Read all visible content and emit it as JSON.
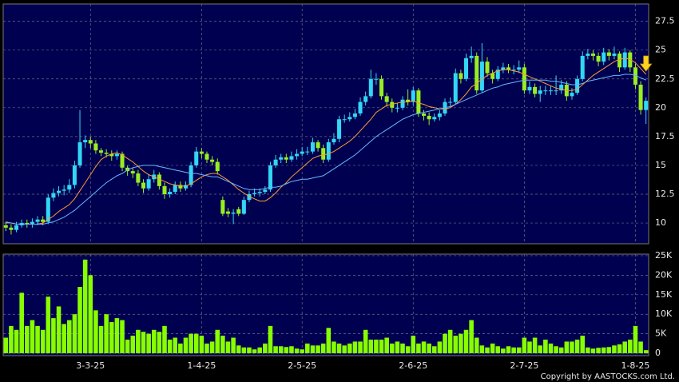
{
  "chart_data": [
    {
      "type": "candlestick",
      "up_color": "#33d6f5",
      "down_color": "#99ee22",
      "grid": true,
      "ylim": [
        8.2,
        29
      ],
      "yticks": [
        10,
        12.5,
        15,
        17.5,
        20,
        22.5,
        25,
        27.5
      ],
      "open": [
        9.8,
        9.6,
        9.4,
        9.8,
        10,
        9.9,
        10.1,
        10.3,
        10.1,
        12.2,
        12.6,
        12.8,
        12.9,
        13.3,
        15,
        17,
        17.2,
        16.9,
        16.3,
        16.1,
        16,
        15.8,
        16,
        14.8,
        14.5,
        14.3,
        13.5,
        13,
        13.8,
        14.2,
        13.2,
        12.5,
        12.7,
        13.3,
        13,
        13.3,
        15,
        16.2,
        16,
        15.5,
        15.3,
        12,
        11,
        10.8,
        11.2,
        10.8,
        12,
        12.5,
        12.6,
        12.7,
        12.9,
        15,
        15.5,
        15.7,
        15.5,
        15.8,
        16,
        16.2,
        16.2,
        17,
        16.5,
        15.5,
        17,
        17.3,
        19,
        19,
        19.2,
        19.5,
        20.5,
        21,
        22.5,
        22.5,
        21,
        20.5,
        20,
        20,
        20.7,
        20.5,
        21.5,
        19.5,
        19.3,
        19,
        19.2,
        19.5,
        20.5,
        20.5,
        23,
        22.5,
        24.3,
        24.5,
        21.5,
        24,
        23,
        22.5,
        23.3,
        23.5,
        23.3,
        23.3,
        23.5,
        21.5,
        21.8,
        21.2,
        21.5,
        21.5,
        21.5,
        21.5,
        22,
        21,
        21.3,
        22.5,
        24.5,
        24.7,
        24.5,
        24,
        24.8,
        24.5,
        24.7,
        23.5,
        24.8,
        23.5,
        22,
        19.8
      ],
      "high": [
        10.1,
        9.9,
        10.1,
        10.3,
        10.3,
        10.4,
        10.6,
        10.6,
        12.5,
        13,
        13.2,
        13.3,
        13.8,
        15.4,
        19.8,
        17.6,
        17.5,
        17.2,
        16.5,
        16.4,
        16.3,
        16.3,
        16.2,
        15,
        14.8,
        14.6,
        13.8,
        14.2,
        14.6,
        14.4,
        13.5,
        13,
        13.6,
        13.6,
        13.6,
        15.3,
        16.6,
        16.5,
        16.2,
        15.8,
        15.6,
        12.3,
        11.3,
        11.2,
        11.4,
        12.3,
        12.8,
        13,
        13,
        13.2,
        15.3,
        15.9,
        16,
        16,
        16.2,
        16.4,
        16.6,
        16.6,
        17.4,
        17.2,
        16.8,
        17.3,
        17.8,
        19.3,
        19.4,
        19.6,
        19.9,
        20.9,
        21.4,
        23.3,
        23,
        22.8,
        21.3,
        20.8,
        20.4,
        21,
        21.6,
        21.8,
        21.7,
        19.8,
        19.6,
        19.5,
        19.8,
        20.8,
        20.9,
        23.4,
        23.3,
        24.7,
        25.3,
        24.8,
        25.6,
        24.4,
        23.3,
        23.6,
        23.9,
        23.8,
        23.7,
        24.1,
        23.8,
        22.3,
        22.1,
        21.9,
        21.9,
        21.9,
        22.8,
        22.4,
        22.3,
        21.7,
        22.8,
        24.9,
        25.1,
        25,
        24.8,
        25.2,
        25.1,
        25.3,
        24.9,
        25.2,
        25,
        23.8,
        22.3,
        20.9
      ],
      "low": [
        9.3,
        9,
        9.2,
        9.6,
        9.6,
        9.6,
        9.8,
        9.8,
        9.9,
        11.9,
        12.3,
        12.4,
        12.6,
        13,
        14.8,
        16.5,
        16.5,
        16,
        15.8,
        15.7,
        15.4,
        15.5,
        14.5,
        14.1,
        13.9,
        13.2,
        12.6,
        12.8,
        13.5,
        12.9,
        12.1,
        12.2,
        12.5,
        12.7,
        12.8,
        13.1,
        14.8,
        15.6,
        15.2,
        15,
        14.2,
        10.6,
        10.5,
        9.9,
        10.6,
        10.7,
        11.8,
        12.3,
        12.3,
        12.5,
        12.7,
        14.8,
        15.2,
        15.2,
        15.3,
        15.5,
        15.8,
        15.9,
        16,
        16.2,
        15.2,
        15.3,
        16.8,
        17,
        18.7,
        18.8,
        19,
        19.3,
        20.2,
        20.8,
        22,
        20.7,
        20.1,
        19.6,
        19.6,
        19.8,
        20.2,
        20.2,
        19.2,
        18.9,
        18.5,
        18.8,
        18.9,
        19.3,
        20.1,
        20.3,
        22.1,
        22.3,
        23.9,
        21.2,
        21.3,
        22.7,
        22.1,
        22.3,
        23,
        23,
        22.9,
        23,
        21.2,
        21.2,
        20.9,
        20.5,
        21.1,
        21.1,
        21.1,
        21.2,
        20.6,
        20.7,
        21.1,
        22.3,
        24.2,
        24.1,
        23.6,
        23.7,
        24.1,
        24.2,
        23.1,
        23.3,
        23.1,
        21.6,
        19.4,
        18.6
      ],
      "close": [
        9.6,
        9.4,
        9.8,
        10,
        9.9,
        10.1,
        10.3,
        10.1,
        12.2,
        12.6,
        12.8,
        12.9,
        13.3,
        15,
        17,
        17.2,
        16.9,
        16.3,
        16.1,
        16,
        15.8,
        16,
        14.8,
        14.5,
        14.3,
        13.5,
        13,
        13.8,
        14.2,
        13.2,
        12.5,
        12.7,
        13.3,
        13,
        13.3,
        15,
        16.2,
        16,
        15.5,
        15.3,
        14.5,
        10.8,
        10.8,
        10.9,
        10.8,
        12,
        12.5,
        12.6,
        12.7,
        12.9,
        15,
        15.5,
        15.7,
        15.5,
        15.8,
        16,
        16.2,
        16.2,
        17,
        16.5,
        15.5,
        17,
        17.3,
        19,
        19,
        19.2,
        19.5,
        20.5,
        21,
        22.5,
        22.5,
        21,
        20.5,
        20,
        20,
        20.7,
        20.5,
        21.5,
        19.5,
        19.3,
        19,
        19.2,
        19.5,
        20.5,
        20.5,
        23,
        22.5,
        24.3,
        24.5,
        21.5,
        24,
        23,
        22.5,
        23.3,
        23.5,
        23.3,
        23.3,
        23.5,
        21.5,
        21.8,
        21.2,
        21.5,
        21.5,
        21.5,
        21.5,
        22,
        21,
        21.3,
        22.5,
        24.5,
        24.7,
        24.5,
        24,
        24.8,
        24.5,
        24.7,
        23.5,
        24.8,
        23.5,
        22,
        19.8,
        20.6
      ],
      "lines": [
        {
          "color": "#ff9933",
          "values": [
            10.1,
            10,
            9.9,
            9.9,
            9.9,
            9.9,
            9.9,
            10,
            10.3,
            10.6,
            11,
            11.3,
            11.6,
            12.1,
            12.8,
            13.5,
            14.2,
            14.9,
            15.5,
            15.8,
            16,
            16.1,
            15.9,
            15.6,
            15.3,
            14.9,
            14.5,
            14.2,
            14,
            13.8,
            13.6,
            13.4,
            13.3,
            13.2,
            13.2,
            13.4,
            13.7,
            14,
            14.2,
            14.3,
            14.3,
            14,
            13.7,
            13.3,
            12.9,
            12.6,
            12.3,
            12.1,
            11.9,
            11.9,
            12.2,
            12.6,
            13.1,
            13.5,
            14,
            14.4,
            14.8,
            15.2,
            15.6,
            15.8,
            15.9,
            16,
            16.2,
            16.5,
            16.8,
            17.1,
            17.5,
            18,
            18.5,
            19,
            19.6,
            19.9,
            20.2,
            20.3,
            20.4,
            20.5,
            20.5,
            20.6,
            20.4,
            20.3,
            20.1,
            20,
            19.9,
            19.9,
            20,
            20.3,
            20.7,
            21.2,
            21.8,
            22.1,
            22.5,
            22.8,
            23,
            23.2,
            23.3,
            23.3,
            23.2,
            23.1,
            22.9,
            22.7,
            22.5,
            22.3,
            22.1,
            21.9,
            21.7,
            21.6,
            21.5,
            21.5,
            21.6,
            22,
            22.4,
            22.8,
            23.1,
            23.4,
            23.7,
            24,
            24.2,
            24.3,
            24.2,
            23.9,
            23.4,
            22.9
          ]
        },
        {
          "color": "#66b8ff",
          "values": [
            10,
            10,
            9.9,
            9.9,
            9.9,
            9.9,
            9.9,
            9.9,
            10,
            10.1,
            10.3,
            10.5,
            10.8,
            11.1,
            11.5,
            11.9,
            12.3,
            12.7,
            13.1,
            13.5,
            13.8,
            14.1,
            14.3,
            14.6,
            14.8,
            14.9,
            15,
            15,
            15,
            14.9,
            14.8,
            14.7,
            14.6,
            14.5,
            14.4,
            14.3,
            14.3,
            14.2,
            14.1,
            14,
            14,
            13.8,
            13.6,
            13.4,
            13.2,
            13,
            12.9,
            12.9,
            12.9,
            13,
            13.1,
            13.1,
            13.2,
            13.4,
            13.6,
            13.7,
            13.8,
            13.8,
            13.9,
            14,
            14.1,
            14.4,
            14.7,
            15,
            15.3,
            15.6,
            15.9,
            16.3,
            16.7,
            17.1,
            17.5,
            17.8,
            18.1,
            18.4,
            18.7,
            19,
            19.2,
            19.4,
            19.5,
            19.6,
            19.7,
            19.8,
            19.9,
            20,
            20.1,
            20.3,
            20.5,
            20.7,
            20.9,
            21.1,
            21.3,
            21.5,
            21.7,
            21.8,
            22,
            22.1,
            22.2,
            22.3,
            22.4,
            22.4,
            22.4,
            22.4,
            22.4,
            22.3,
            22.3,
            22.2,
            22.1,
            22,
            22,
            22.1,
            22.3,
            22.4,
            22.5,
            22.6,
            22.7,
            22.8,
            22.8,
            22.9,
            22.9,
            22.8,
            22.6,
            22.4
          ]
        }
      ]
    },
    {
      "type": "bar",
      "color": "#88ff00",
      "grid": true,
      "ylim": [
        -600,
        25400
      ],
      "yticks": [
        0,
        {
          "value": 5000,
          "label": "5K"
        },
        {
          "value": 10000,
          "label": "10K"
        },
        {
          "value": 15000,
          "label": "15K"
        },
        {
          "value": 20000,
          "label": "20K"
        },
        {
          "value": 25000,
          "label": "25K"
        }
      ],
      "categories": [
        null,
        null,
        null,
        null,
        null,
        null,
        null,
        null,
        null,
        null,
        null,
        null,
        null,
        null,
        null,
        null,
        "3-3-25",
        null,
        null,
        null,
        null,
        null,
        null,
        null,
        null,
        null,
        null,
        null,
        null,
        null,
        null,
        null,
        null,
        null,
        null,
        null,
        null,
        "1-4-25",
        null,
        null,
        null,
        null,
        null,
        null,
        null,
        null,
        null,
        null,
        null,
        null,
        null,
        null,
        null,
        null,
        null,
        null,
        "2-5-25",
        null,
        null,
        null,
        null,
        null,
        null,
        null,
        null,
        null,
        null,
        null,
        null,
        null,
        null,
        null,
        null,
        null,
        null,
        null,
        null,
        "2-6-25",
        null,
        null,
        null,
        null,
        null,
        null,
        null,
        null,
        null,
        null,
        null,
        null,
        null,
        null,
        null,
        null,
        null,
        null,
        null,
        null,
        "2-7-25",
        null,
        null,
        null,
        null,
        null,
        null,
        null,
        null,
        null,
        null,
        null,
        null,
        null,
        null,
        null,
        null,
        null,
        null,
        null,
        null,
        "1-8-25",
        null,
        null
      ],
      "values": [
        4000,
        7000,
        6000,
        15500,
        7000,
        8500,
        7000,
        6000,
        14500,
        9000,
        12000,
        7500,
        8500,
        10000,
        17000,
        24000,
        20000,
        11000,
        7000,
        10000,
        8000,
        9000,
        8500,
        3500,
        4500,
        6000,
        5500,
        5000,
        6000,
        5500,
        7000,
        3500,
        4000,
        2500,
        4000,
        5000,
        5000,
        4500,
        2500,
        3000,
        6000,
        4500,
        3000,
        4000,
        2000,
        1500,
        1500,
        1000,
        1500,
        2500,
        7000,
        1800,
        1800,
        1600,
        1800,
        1200,
        1000,
        2500,
        2000,
        2000,
        2500,
        6500,
        3000,
        2500,
        2000,
        2500,
        3000,
        3000,
        6000,
        3500,
        3500,
        3500,
        4000,
        2500,
        3000,
        2500,
        1800,
        4500,
        2500,
        3000,
        2500,
        1800,
        3000,
        5000,
        6000,
        4500,
        5000,
        6000,
        8500,
        4000,
        2000,
        1500,
        2500,
        1800,
        1200,
        1800,
        1500,
        1500,
        4000,
        3000,
        4000,
        2000,
        3500,
        2500,
        1800,
        1500,
        3000,
        3000,
        3500,
        4500,
        1500,
        1200,
        1400,
        1500,
        1600,
        2000,
        2300,
        3000,
        3500,
        7000,
        3000,
        800
      ]
    }
  ],
  "footer": "Copyright by AASTOCKS.com Ltd."
}
